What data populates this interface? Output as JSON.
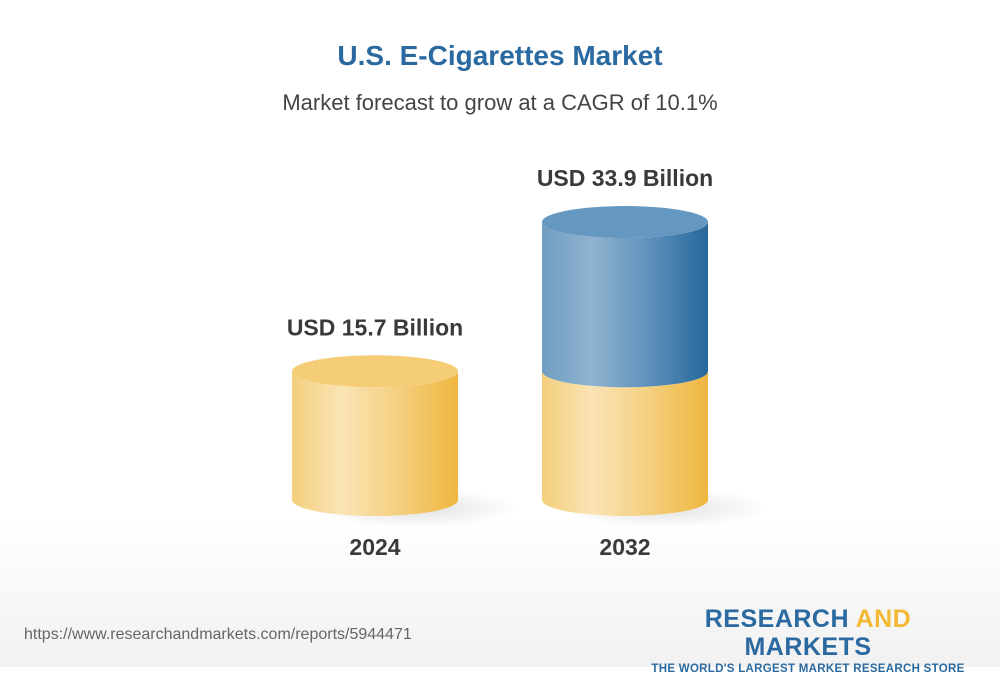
{
  "chart_data": {
    "type": "bar",
    "style": "3d-cylinder",
    "title": "U.S. E-Cigarettes Market",
    "subtitle": "Market forecast to grow at a CAGR of 10.1%",
    "categories": [
      "2024",
      "2032"
    ],
    "values": [
      15.7,
      33.9
    ],
    "unit": "USD Billion",
    "data_labels": [
      "USD 15.7 Billion",
      "USD 33.9 Billion"
    ],
    "colors": {
      "base": "#f1b935",
      "growth": "#2b6aa0"
    }
  },
  "footer": {
    "url": "https://www.researchandmarkets.com/reports/5944471",
    "logo_line1_a": "RESEARCH ",
    "logo_line1_b": "AND",
    "logo_line1_c": " MARKETS",
    "logo_line2": "THE WORLD'S LARGEST MARKET RESEARCH STORE"
  }
}
